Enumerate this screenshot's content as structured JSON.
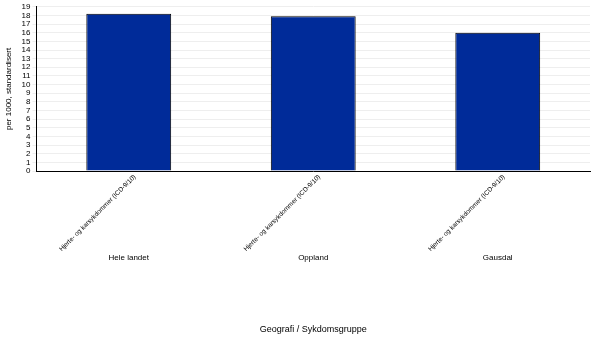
{
  "chart_data": {
    "type": "bar",
    "categories": [
      "Hele landet",
      "Oppland",
      "Gausdal"
    ],
    "series": [
      {
        "name": "Hjerte- og karsykdommer (ICD-9/10)",
        "color": "#002b99",
        "values": [
          18.2,
          17.9,
          16.0
        ]
      }
    ],
    "x_label": "Geografi / Sykdomsgruppe",
    "y_label": "per 1000, standardisert",
    "ylim": [
      0,
      19
    ],
    "yticks": [
      0,
      1,
      2,
      3,
      4,
      5,
      6,
      7,
      8,
      9,
      10,
      11,
      12,
      13,
      14,
      15,
      16,
      17,
      18,
      19
    ],
    "grid": true
  }
}
